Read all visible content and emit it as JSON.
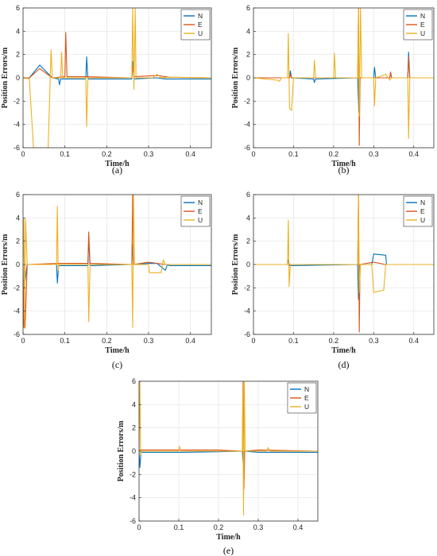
{
  "colors": {
    "N": "#0072BD",
    "E": "#D95319",
    "U": "#EDB120",
    "grid": "#e3e3e3",
    "axis": "#333333"
  },
  "chart_data": [
    {
      "type": "line",
      "caption": "(a)",
      "xlabel": "Time/h",
      "ylabel": "Position Errors/m",
      "xlim": [
        0,
        0.45
      ],
      "ylim": [
        -6,
        6
      ],
      "xticks": [
        0,
        0.1,
        0.2,
        0.3,
        0.4
      ],
      "xtick_labels": [
        "0",
        "0.1",
        "0.2",
        "0.3",
        "0.4"
      ],
      "yticks": [
        -6,
        -4,
        -2,
        0,
        2,
        4,
        6
      ],
      "ytick_labels": [
        "-6",
        "-4",
        "-2",
        "0",
        "2",
        "4",
        "6"
      ],
      "grid": true,
      "legend_position": "top-right",
      "series": [
        {
          "name": "N",
          "x": [
            0,
            0.015,
            0.04,
            0.07,
            0.085,
            0.087,
            0.09,
            0.15,
            0.152,
            0.155,
            0.26,
            0.262,
            0.265,
            0.32,
            0.34,
            0.45
          ],
          "y": [
            0,
            0,
            1.1,
            0,
            -0.1,
            -0.6,
            -0.1,
            -0.1,
            1.8,
            -0.1,
            -0.1,
            1.4,
            -0.1,
            0,
            -0.1,
            -0.1
          ]
        },
        {
          "name": "E",
          "x": [
            0,
            0.015,
            0.04,
            0.07,
            0.1,
            0.102,
            0.105,
            0.15,
            0.26,
            0.262,
            0.265,
            0.32,
            0.35,
            0.45
          ],
          "y": [
            0,
            0,
            0.8,
            0,
            0.1,
            3.9,
            0.1,
            0.1,
            0,
            1,
            0.1,
            0.2,
            0.05,
            0
          ]
        },
        {
          "name": "U",
          "x": [
            0,
            0.015,
            0.025,
            0.04,
            0.06,
            0.065,
            0.067,
            0.07,
            0.09,
            0.092,
            0.095,
            0.15,
            0.152,
            0.155,
            0.26,
            0.262,
            0.265,
            0.268,
            0.27,
            0.31,
            0.32,
            0.33,
            0.35,
            0.45
          ],
          "y": [
            0,
            -0.1,
            -6,
            -6,
            -6,
            0,
            2.4,
            0,
            0,
            2.2,
            0,
            0,
            -4.2,
            0,
            0,
            6,
            -1,
            6,
            0,
            0,
            0.3,
            0,
            0.05,
            0
          ]
        }
      ]
    },
    {
      "type": "line",
      "caption": "(b)",
      "xlabel": "Time/h",
      "ylabel": "Position Errors/m",
      "xlim": [
        0,
        0.45
      ],
      "ylim": [
        -6,
        6
      ],
      "xticks": [
        0,
        0.1,
        0.2,
        0.3,
        0.4
      ],
      "xtick_labels": [
        "0",
        "0.1",
        "0.2",
        "0.3",
        "0.4"
      ],
      "yticks": [
        -6,
        -4,
        -2,
        0,
        2,
        4,
        6
      ],
      "ytick_labels": [
        "-6",
        "-4",
        "-2",
        "0",
        "2",
        "4",
        "6"
      ],
      "grid": true,
      "legend_position": "top-right",
      "series": [
        {
          "name": "N",
          "x": [
            0,
            0.09,
            0.092,
            0.095,
            0.15,
            0.152,
            0.155,
            0.26,
            0.263,
            0.266,
            0.3,
            0.302,
            0.305,
            0.34,
            0.342,
            0.345,
            0.385,
            0.387,
            0.39,
            0.45
          ],
          "y": [
            0,
            0,
            0.6,
            0,
            -0.1,
            -0.4,
            -0.1,
            0,
            -3,
            0,
            0,
            0.9,
            0,
            0,
            0.4,
            0,
            0,
            2.2,
            0,
            0
          ]
        },
        {
          "name": "E",
          "x": [
            0,
            0.09,
            0.092,
            0.095,
            0.26,
            0.262,
            0.264,
            0.266,
            0.34,
            0.342,
            0.345,
            0.385,
            0.387,
            0.39,
            0.45
          ],
          "y": [
            0,
            0,
            0.3,
            0,
            0,
            6,
            -5.8,
            0,
            0,
            0.5,
            0,
            0,
            1.8,
            0,
            0
          ]
        },
        {
          "name": "U",
          "x": [
            0,
            0.06,
            0.065,
            0.07,
            0.085,
            0.087,
            0.09,
            0.095,
            0.1,
            0.15,
            0.152,
            0.155,
            0.2,
            0.202,
            0.205,
            0.26,
            0.262,
            0.264,
            0.267,
            0.27,
            0.3,
            0.302,
            0.305,
            0.33,
            0.34,
            0.345,
            0.385,
            0.387,
            0.39,
            0.45
          ],
          "y": [
            0,
            -0.2,
            -0.3,
            0,
            0,
            3.8,
            -2.6,
            -2.8,
            0,
            0,
            1.5,
            0,
            0,
            2.1,
            0,
            0,
            6,
            -3.3,
            6,
            0,
            0,
            -2.4,
            0,
            0.3,
            -0.2,
            0,
            0,
            -5.2,
            0,
            0
          ]
        }
      ]
    },
    {
      "type": "line",
      "caption": "(c)",
      "xlabel": "Time/h",
      "ylabel": "Position Errors/m",
      "xlim": [
        0,
        0.45
      ],
      "ylim": [
        -6,
        6
      ],
      "xticks": [
        0,
        0.1,
        0.2,
        0.3,
        0.4
      ],
      "xtick_labels": [
        "0",
        "0.1",
        "0.2",
        "0.3",
        "0.4"
      ],
      "yticks": [
        -6,
        -4,
        -2,
        0,
        2,
        4,
        6
      ],
      "ytick_labels": [
        "-6",
        "-4",
        "-2",
        "0",
        "2",
        "4",
        "6"
      ],
      "grid": true,
      "legend_position": "top-right",
      "series": [
        {
          "name": "N",
          "x": [
            0,
            0.005,
            0.01,
            0.08,
            0.082,
            0.085,
            0.155,
            0.157,
            0.16,
            0.26,
            0.262,
            0.264,
            0.3,
            0.32,
            0.34,
            0.345,
            0.35,
            0.45
          ],
          "y": [
            -1.4,
            -1.4,
            0,
            0,
            -1.6,
            -0.1,
            -0.1,
            2.2,
            -0.1,
            0,
            1.7,
            0,
            0.1,
            0.1,
            -0.5,
            0,
            -0.1,
            -0.1
          ]
        },
        {
          "name": "E",
          "x": [
            0,
            0.002,
            0.005,
            0.01,
            0.085,
            0.155,
            0.157,
            0.16,
            0.26,
            0.262,
            0.264,
            0.3,
            0.34,
            0.45
          ],
          "y": [
            0,
            -5.4,
            -5.4,
            0,
            0.1,
            0.1,
            2.8,
            0.1,
            0,
            6,
            0,
            0.2,
            0,
            0
          ]
        },
        {
          "name": "U",
          "x": [
            0,
            0.002,
            0.004,
            0.006,
            0.01,
            0.08,
            0.082,
            0.084,
            0.086,
            0.155,
            0.157,
            0.16,
            0.26,
            0.262,
            0.264,
            0.266,
            0.3,
            0.302,
            0.33,
            0.335,
            0.34,
            0.45
          ],
          "y": [
            0,
            3.9,
            -5.5,
            3.9,
            0,
            0,
            5,
            -0.5,
            0,
            0,
            -4.9,
            0,
            0,
            -5.4,
            6,
            0,
            0,
            -0.7,
            -0.7,
            0.4,
            0,
            0
          ]
        }
      ]
    },
    {
      "type": "line",
      "caption": "(d)",
      "xlabel": "Time/h",
      "ylabel": "Position Errors/m",
      "xlim": [
        0,
        0.45
      ],
      "ylim": [
        -6,
        6
      ],
      "xticks": [
        0,
        0.1,
        0.2,
        0.3,
        0.4
      ],
      "xtick_labels": [
        "0",
        "0.1",
        "0.2",
        "0.3",
        "0.4"
      ],
      "yticks": [
        -6,
        -4,
        -2,
        0,
        2,
        4,
        6
      ],
      "ytick_labels": [
        "-6",
        "-4",
        "-2",
        "0",
        "2",
        "4",
        "6"
      ],
      "grid": true,
      "legend_position": "top-right",
      "series": [
        {
          "name": "N",
          "x": [
            0,
            0.085,
            0.087,
            0.09,
            0.26,
            0.262,
            0.265,
            0.295,
            0.3,
            0.33,
            0.332,
            0.45
          ],
          "y": [
            0,
            0,
            0.4,
            -0.1,
            0,
            -3,
            0,
            0,
            0.9,
            0.8,
            0,
            0
          ]
        },
        {
          "name": "E",
          "x": [
            0,
            0.26,
            0.262,
            0.264,
            0.266,
            0.3,
            0.33,
            0.45
          ],
          "y": [
            0,
            0,
            6,
            -5.8,
            0,
            0.2,
            0,
            0
          ]
        },
        {
          "name": "U",
          "x": [
            0,
            0.085,
            0.087,
            0.089,
            0.092,
            0.26,
            0.262,
            0.264,
            0.267,
            0.295,
            0.3,
            0.325,
            0.33,
            0.45
          ],
          "y": [
            0,
            0,
            3.8,
            -1.9,
            0,
            0,
            6,
            -2.4,
            0,
            0,
            -2.4,
            -2.2,
            0,
            0
          ]
        }
      ]
    },
    {
      "type": "line",
      "caption": "(e)",
      "xlabel": "Time/h",
      "ylabel": "Position Errors/m",
      "xlim": [
        0,
        0.45
      ],
      "ylim": [
        -6,
        6
      ],
      "xticks": [
        0,
        0.1,
        0.2,
        0.3,
        0.4
      ],
      "xtick_labels": [
        "0",
        "0.1",
        "0.2",
        "0.3",
        "0.4"
      ],
      "yticks": [
        -6,
        -4,
        -2,
        0,
        2,
        4,
        6
      ],
      "ytick_labels": [
        "-6",
        "-4",
        "-2",
        "0",
        "2",
        "4",
        "6"
      ],
      "grid": true,
      "legend_position": "top-right",
      "series": [
        {
          "name": "N",
          "x": [
            0,
            0.002,
            0.005,
            0.1,
            0.2,
            0.26,
            0.262,
            0.264,
            0.3,
            0.45
          ],
          "y": [
            0,
            -1.4,
            -0.1,
            -0.1,
            -0.05,
            0,
            -1,
            0,
            -0.1,
            -0.1
          ]
        },
        {
          "name": "E",
          "x": [
            0,
            0.1,
            0.2,
            0.26,
            0.262,
            0.264,
            0.266,
            0.3,
            0.45
          ],
          "y": [
            0.1,
            0.1,
            0.1,
            0,
            6,
            -3.3,
            0,
            0.1,
            0
          ]
        },
        {
          "name": "U",
          "x": [
            0,
            0.002,
            0.004,
            0.006,
            0.1,
            0.102,
            0.105,
            0.26,
            0.261,
            0.263,
            0.265,
            0.267,
            0.32,
            0.325,
            0.33,
            0.45
          ],
          "y": [
            0,
            6,
            -0.3,
            0,
            0,
            0.4,
            0,
            0,
            5.8,
            -5.5,
            6,
            0,
            0,
            0.3,
            0,
            0
          ]
        }
      ]
    }
  ]
}
